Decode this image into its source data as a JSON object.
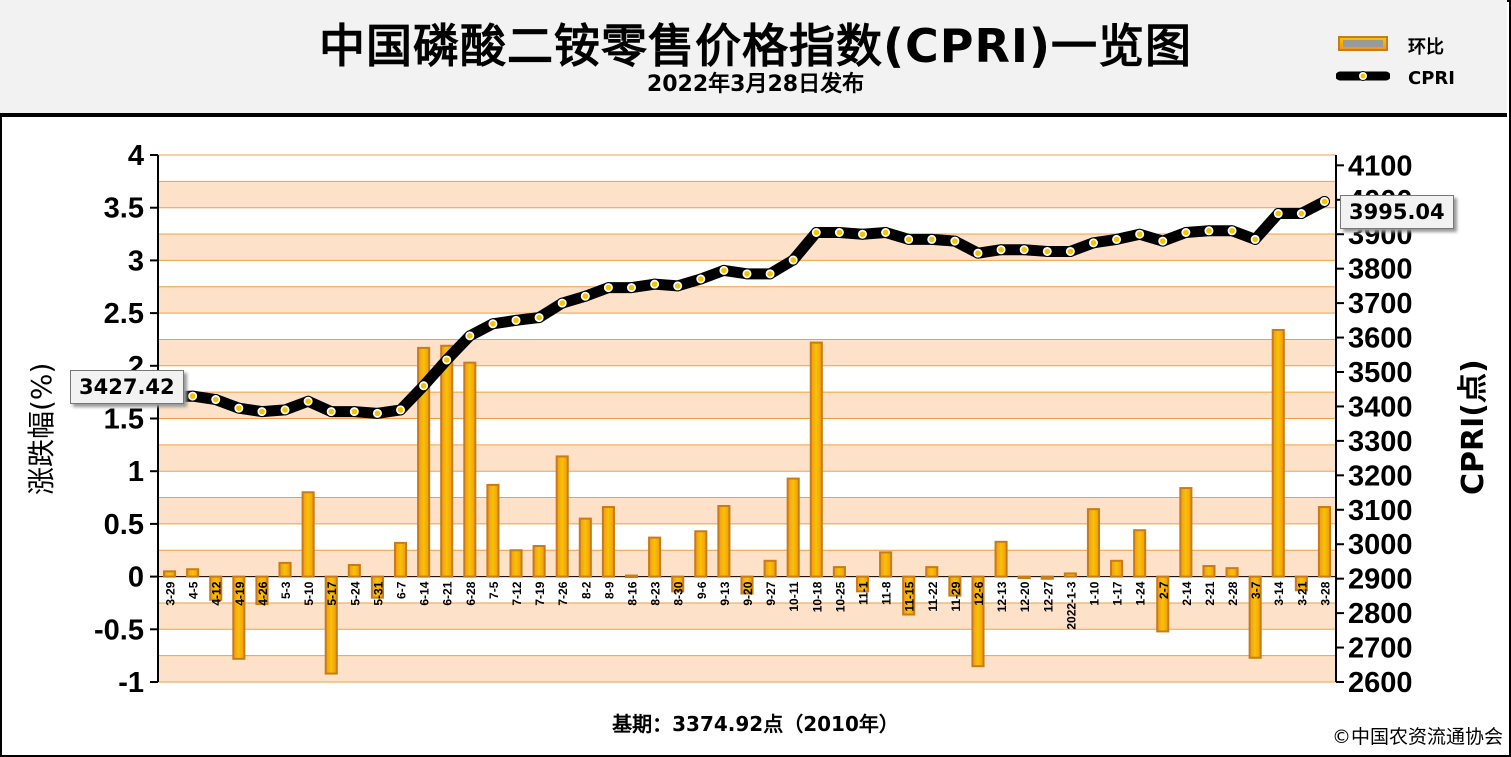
{
  "header": {
    "title": "中国磷酸二铵零售价格指数(CPRI)一览图",
    "subtitle": "2022年3月28日发布"
  },
  "legend": {
    "bar_label": "环比",
    "line_label": "CPRI"
  },
  "axes": {
    "left_label": "涨跌幅(%)",
    "right_label": "CPRI(点)"
  },
  "callouts": {
    "left": "3427.42",
    "right": "3995.04"
  },
  "footer": {
    "base_note": "基期：3374.92点（2010年）",
    "copyright": "©中国农资流通协会"
  },
  "colors": {
    "band_light": "#fde2c9",
    "band_white": "#ffffff",
    "grid": "#f0a040",
    "bar_fill_top": "#f5c400",
    "bar_fill_bottom": "#f7941d",
    "bar_edge": "#c67c18",
    "line": "#000000",
    "marker": "#f5c400"
  },
  "chart_data": {
    "type": "bar+line",
    "categories": [
      "3-29",
      "4-5",
      "4-12",
      "4-19",
      "4-26",
      "5-3",
      "5-10",
      "5-17",
      "5-24",
      "5-31",
      "6-7",
      "6-14",
      "6-21",
      "6-28",
      "7-5",
      "7-12",
      "7-19",
      "7-26",
      "8-2",
      "8-9",
      "8-16",
      "8-23",
      "8-30",
      "9-6",
      "9-13",
      "9-20",
      "9-27",
      "10-11",
      "10-18",
      "10-25",
      "11-1",
      "11-8",
      "11-15",
      "11-22",
      "11-29",
      "12-6",
      "12-13",
      "12-20",
      "12-27",
      "2022-1-3",
      "1-10",
      "1-17",
      "1-24",
      "2-7",
      "2-14",
      "2-21",
      "2-28",
      "3-7",
      "3-14",
      "3-21",
      "3-28"
    ],
    "left_axis": {
      "ticks": [
        "4",
        "3.5",
        "3",
        "2.5",
        "2",
        "1.5",
        "1",
        "0.5",
        "0",
        "-0.5",
        "-1"
      ],
      "ylim": [
        -1,
        4
      ]
    },
    "right_axis": {
      "ticks": [
        "4100",
        "4000",
        "3900",
        "3800",
        "3700",
        "3600",
        "3500",
        "3400",
        "3300",
        "3200",
        "3100",
        "3000",
        "2900",
        "2800",
        "2700",
        "2600"
      ],
      "ylim": [
        2600,
        4130
      ]
    },
    "series": [
      {
        "name": "环比",
        "kind": "bar",
        "axis": "left",
        "values": [
          0.05,
          0.07,
          -0.22,
          -0.78,
          -0.26,
          0.13,
          0.8,
          -0.92,
          0.11,
          -0.2,
          0.32,
          2.17,
          2.19,
          2.03,
          0.87,
          0.25,
          0.29,
          1.14,
          0.55,
          0.66,
          0.01,
          0.37,
          -0.14,
          0.43,
          0.67,
          -0.16,
          0.15,
          0.93,
          2.22,
          0.09,
          -0.14,
          0.23,
          -0.36,
          0.09,
          -0.18,
          -0.85,
          0.33,
          0.0,
          -0.02,
          0.03,
          0.64,
          0.15,
          0.44,
          -0.52,
          0.84,
          0.1,
          0.08,
          -0.77,
          2.34,
          -0.13,
          0.66
        ]
      },
      {
        "name": "CPRI",
        "kind": "line",
        "axis": "right",
        "values": [
          3427.42,
          3430,
          3420,
          3395,
          3385,
          3390,
          3415,
          3385,
          3385,
          3380,
          3390,
          3460,
          3535,
          3605,
          3640,
          3650,
          3658,
          3700,
          3720,
          3745,
          3745,
          3755,
          3750,
          3770,
          3795,
          3785,
          3785,
          3825,
          3905,
          3905,
          3900,
          3905,
          3885,
          3885,
          3880,
          3845,
          3855,
          3855,
          3850,
          3850,
          3875,
          3885,
          3900,
          3880,
          3905,
          3910,
          3910,
          3885,
          3960,
          3960,
          3995.04
        ]
      }
    ]
  }
}
